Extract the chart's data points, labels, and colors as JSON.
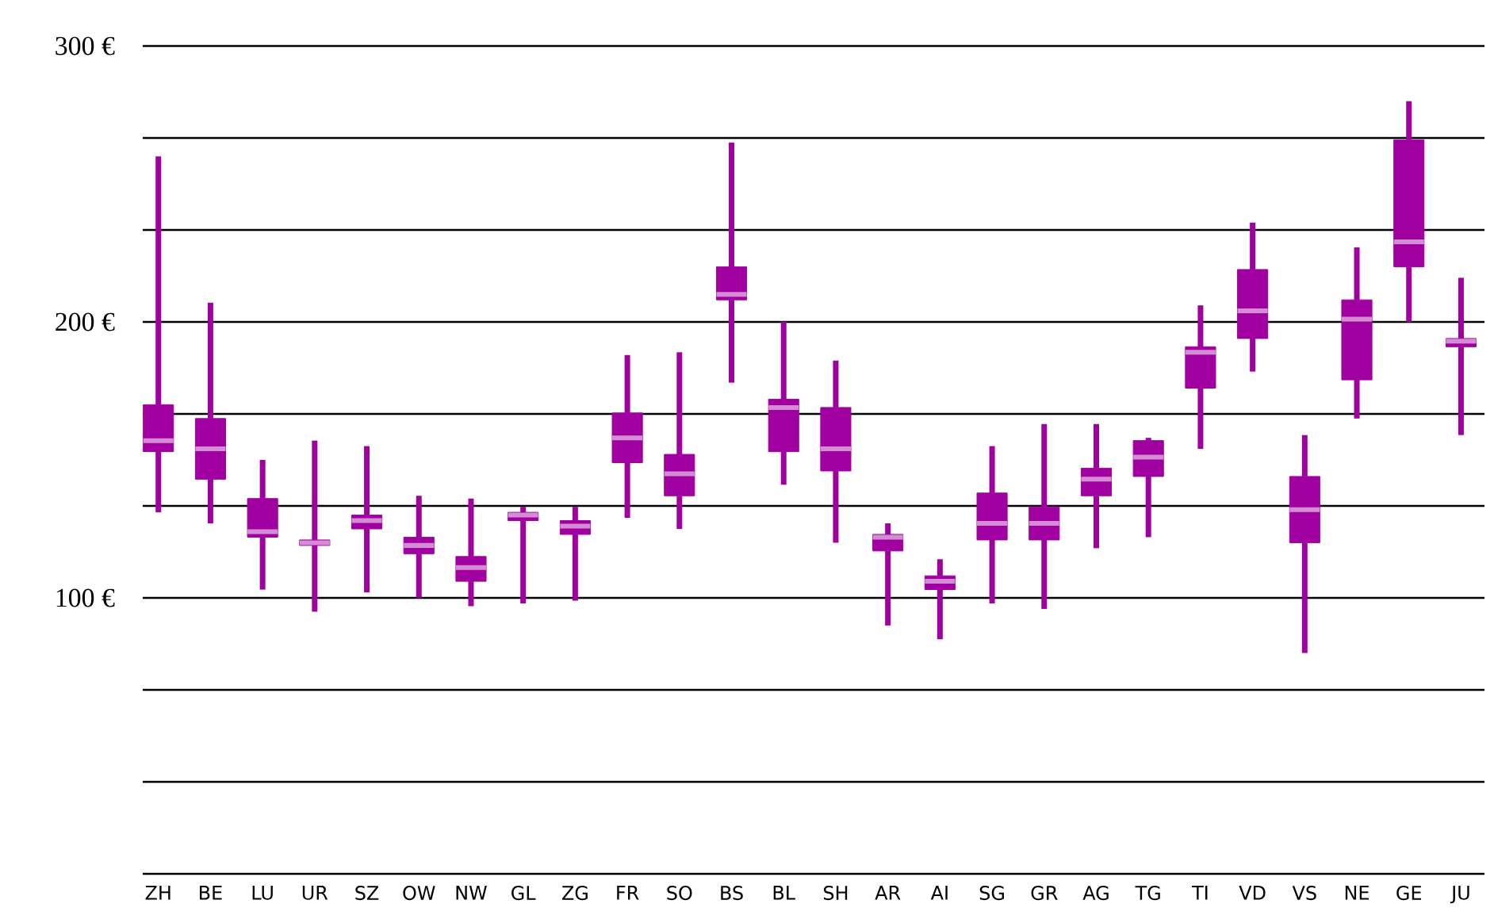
{
  "chart_data": {
    "type": "box",
    "categories": [
      "ZH",
      "BE",
      "LU",
      "UR",
      "SZ",
      "OW",
      "NW",
      "GL",
      "ZG",
      "FR",
      "SO",
      "BS",
      "BL",
      "SH",
      "AR",
      "AI",
      "SG",
      "GR",
      "AG",
      "TG",
      "TI",
      "VD",
      "VS",
      "NE",
      "GE",
      "JU"
    ],
    "color": "#a000a0",
    "boxes": [
      {
        "low": 131,
        "q1": 153,
        "median": 157,
        "q3": 170,
        "high": 260
      },
      {
        "low": 127,
        "q1": 143,
        "median": 154,
        "q3": 165,
        "high": 207
      },
      {
        "low": 103,
        "q1": 122,
        "median": 124,
        "q3": 136,
        "high": 150
      },
      {
        "low": 95,
        "q1": 119,
        "median": 120,
        "q3": 121,
        "high": 157
      },
      {
        "low": 102,
        "q1": 125,
        "median": 128,
        "q3": 130,
        "high": 155
      },
      {
        "low": 100,
        "q1": 116,
        "median": 119,
        "q3": 122,
        "high": 137
      },
      {
        "low": 97,
        "q1": 106,
        "median": 111,
        "q3": 115,
        "high": 136
      },
      {
        "low": 98,
        "q1": 128,
        "median": 130,
        "q3": 131,
        "high": 133
      },
      {
        "low": 99,
        "q1": 123,
        "median": 126,
        "q3": 128,
        "high": 133
      },
      {
        "low": 129,
        "q1": 149,
        "median": 158,
        "q3": 167,
        "high": 188
      },
      {
        "low": 125,
        "q1": 137,
        "median": 145,
        "q3": 152,
        "high": 189
      },
      {
        "low": 178,
        "q1": 208,
        "median": 210,
        "q3": 220,
        "high": 265
      },
      {
        "low": 141,
        "q1": 153,
        "median": 169,
        "q3": 172,
        "high": 200
      },
      {
        "low": 120,
        "q1": 146,
        "median": 154,
        "q3": 169,
        "high": 186
      },
      {
        "low": 90,
        "q1": 117,
        "median": 122,
        "q3": 123,
        "high": 127
      },
      {
        "low": 85,
        "q1": 103,
        "median": 106,
        "q3": 108,
        "high": 114
      },
      {
        "low": 98,
        "q1": 121,
        "median": 127,
        "q3": 138,
        "high": 155
      },
      {
        "low": 96,
        "q1": 121,
        "median": 127,
        "q3": 133,
        "high": 163
      },
      {
        "low": 118,
        "q1": 137,
        "median": 143,
        "q3": 147,
        "high": 163
      },
      {
        "low": 122,
        "q1": 144,
        "median": 151,
        "q3": 157,
        "high": 158
      },
      {
        "low": 154,
        "q1": 176,
        "median": 189,
        "q3": 191,
        "high": 206
      },
      {
        "low": 182,
        "q1": 194,
        "median": 204,
        "q3": 219,
        "high": 236
      },
      {
        "low": 80,
        "q1": 120,
        "median": 132,
        "q3": 144,
        "high": 159
      },
      {
        "low": 165,
        "q1": 179,
        "median": 201,
        "q3": 208,
        "high": 227
      },
      {
        "low": 200,
        "q1": 220,
        "median": 229,
        "q3": 266,
        "high": 280
      },
      {
        "low": 159,
        "q1": 191,
        "median": 193,
        "q3": 194,
        "high": 216
      }
    ],
    "ylim": [
      0,
      300
    ],
    "yticks": [
      {
        "value": 0,
        "label": null
      },
      {
        "value": 33.33,
        "label": null
      },
      {
        "value": 66.67,
        "label": null
      },
      {
        "value": 100,
        "label": "100 €"
      },
      {
        "value": 133.33,
        "label": null
      },
      {
        "value": 166.67,
        "label": null
      },
      {
        "value": 200,
        "label": "200 €"
      },
      {
        "value": 233.33,
        "label": null
      },
      {
        "value": 266.67,
        "label": null
      },
      {
        "value": 300,
        "label": "300 €"
      }
    ],
    "grid": "y"
  }
}
